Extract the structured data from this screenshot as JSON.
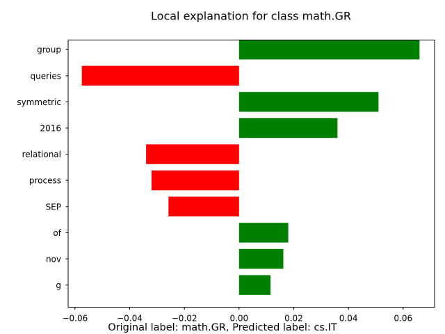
{
  "chart_data": {
    "type": "bar",
    "orientation": "horizontal",
    "title": "Local explanation for class math.GR",
    "caption": "Original label: math.GR, Predicted label: cs.IT",
    "categories": [
      "group",
      "queries",
      "symmetric",
      "2016",
      "relational",
      "process",
      "SEP",
      "of",
      "nov",
      "g"
    ],
    "values": [
      0.066,
      -0.0575,
      0.051,
      0.036,
      -0.034,
      -0.032,
      -0.0258,
      0.018,
      0.0162,
      0.0115
    ],
    "xlim": [
      -0.0625,
      0.0715
    ],
    "xticks": [
      -0.06,
      -0.04,
      -0.02,
      0,
      0.02,
      0.04,
      0.06
    ],
    "xtick_labels": [
      "−0.06",
      "−0.04",
      "−0.02",
      "0.00",
      "0.02",
      "0.04",
      "0.06"
    ],
    "grid": false,
    "colors": {
      "positive": "#008000",
      "negative": "#ff0000",
      "axis": "#000000"
    }
  }
}
